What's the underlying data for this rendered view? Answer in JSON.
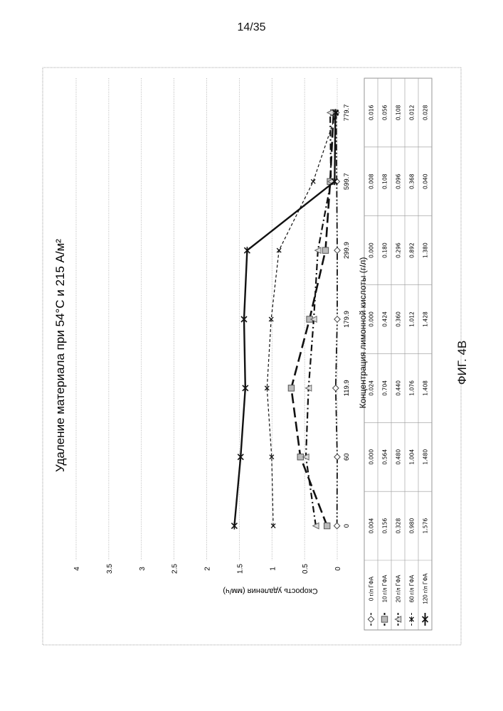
{
  "page": {
    "number": "14/35",
    "figure_caption": "ФИГ. 4В"
  },
  "chart_data": {
    "type": "line",
    "title": "Удаление материала при 54°C и 215 А/м²",
    "xlabel": "Концентрация лимонной кислоты (г/л)",
    "ylabel": "Скорость удаления (мм/ч)",
    "categories": [
      "0",
      "60",
      "119.9",
      "179.9",
      "299.9",
      "599.7",
      "779.7"
    ],
    "ylim": [
      0,
      4
    ],
    "yticks": [
      "0",
      "0.5",
      "1",
      "1.5",
      "2",
      "2.5",
      "3",
      "3.5",
      "4"
    ],
    "grid": true,
    "legend_placement": "data-table",
    "series": [
      {
        "name": "0 г/л ГФА",
        "marker": "diamond",
        "dash": "dash-dot-dot",
        "values": [
          0.004,
          0.0,
          0.024,
          0.0,
          0.0,
          0.008,
          0.016
        ],
        "labels": [
          "0.004",
          "0.000",
          "0.024",
          "0.000",
          "0.000",
          "0.008",
          "0.016"
        ]
      },
      {
        "name": "10 г/л ГФА",
        "marker": "square",
        "dash": "long-dash",
        "values": [
          0.156,
          0.564,
          0.704,
          0.424,
          0.18,
          0.108,
          0.056
        ],
        "labels": [
          "0.156",
          "0.564",
          "0.704",
          "0.424",
          "0.180",
          "0.108",
          "0.056"
        ]
      },
      {
        "name": "20 г/л ГФА",
        "marker": "triangle",
        "dash": "dash-dot",
        "values": [
          0.328,
          0.48,
          0.44,
          0.36,
          0.296,
          0.096,
          0.108
        ],
        "labels": [
          "0.328",
          "0.480",
          "0.440",
          "0.360",
          "0.296",
          "0.096",
          "0.108"
        ]
      },
      {
        "name": "60 г/л ГФА",
        "marker": "x",
        "dash": "short-dash",
        "values": [
          0.98,
          1.004,
          1.076,
          1.012,
          0.892,
          0.368,
          0.012
        ],
        "labels": [
          "0.980",
          "1.004",
          "1.076",
          "1.012",
          "0.892",
          "0.368",
          "0.012"
        ]
      },
      {
        "name": "120 г/л ГФА",
        "marker": "star",
        "dash": "solid",
        "values": [
          1.576,
          1.48,
          1.408,
          1.428,
          1.38,
          0.04,
          0.028
        ],
        "labels": [
          "1.576",
          "1.480",
          "1.408",
          "1.428",
          "1.380",
          "0.040",
          "0.028"
        ]
      }
    ]
  }
}
